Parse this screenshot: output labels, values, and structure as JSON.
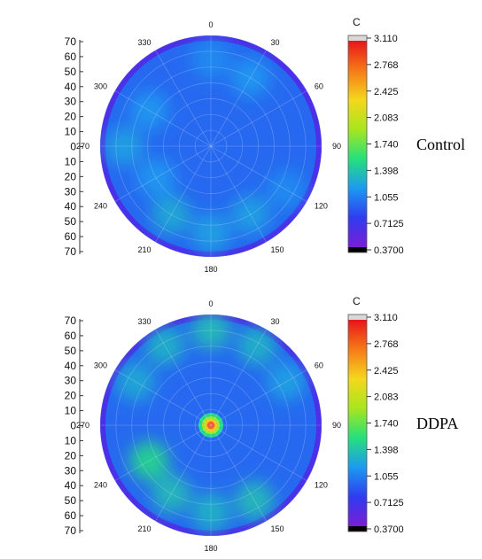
{
  "chart_data": [
    {
      "type": "heatmap",
      "subtype": "polar",
      "group_label": "Control",
      "colorbar_title": "C",
      "colorbar_ticks": [
        "3.110",
        "2.768",
        "2.425",
        "2.083",
        "1.740",
        "1.398",
        "1.055",
        "0.7125",
        "0.3700"
      ],
      "color_range": [
        0.37,
        3.11
      ],
      "colors": [
        "#000000",
        "#7a1dd6",
        "#2f3cf0",
        "#1c9af0",
        "#26e07c",
        "#a8e61e",
        "#f5d71c",
        "#f57a18",
        "#e8141a",
        "#d8d8d8"
      ],
      "radial_ticks": [
        "70",
        "60",
        "50",
        "40",
        "30",
        "20",
        "10",
        "0",
        "10",
        "20",
        "30",
        "40",
        "50",
        "60",
        "70"
      ],
      "radial_range": [
        0,
        70
      ],
      "angular_ticks": [
        {
          "angle": 0,
          "label": "0"
        },
        {
          "angle": 30,
          "label": "30"
        },
        {
          "angle": 60,
          "label": "60"
        },
        {
          "angle": 90,
          "label": "90"
        },
        {
          "angle": 120,
          "label": "120"
        },
        {
          "angle": 150,
          "label": "150"
        },
        {
          "angle": 180,
          "label": "180"
        },
        {
          "angle": 210,
          "label": "210"
        },
        {
          "angle": 240,
          "label": "240"
        },
        {
          "angle": 270,
          "label": "270"
        },
        {
          "angle": 300,
          "label": "300"
        },
        {
          "angle": 330,
          "label": "330"
        }
      ],
      "background_value": 0.95,
      "features": [
        {
          "angle": 270,
          "radius": 55,
          "value": 1.2
        },
        {
          "angle": 300,
          "radius": 45,
          "value": 1.15
        },
        {
          "angle": 30,
          "radius": 50,
          "value": 1.15
        },
        {
          "angle": 0,
          "radius": 55,
          "value": 1.1
        },
        {
          "angle": 210,
          "radius": 50,
          "value": 1.25
        },
        {
          "angle": 180,
          "radius": 55,
          "value": 1.2
        },
        {
          "angle": 150,
          "radius": 50,
          "value": 1.2
        },
        {
          "angle": 240,
          "radius": 40,
          "value": 1.15
        },
        {
          "angle": 120,
          "radius": 55,
          "value": 1.1
        }
      ]
    },
    {
      "type": "heatmap",
      "subtype": "polar",
      "group_label": "DDPA",
      "colorbar_title": "C",
      "colorbar_ticks": [
        "3.110",
        "2.768",
        "2.425",
        "2.083",
        "1.740",
        "1.398",
        "1.055",
        "0.7125",
        "0.3700"
      ],
      "color_range": [
        0.37,
        3.11
      ],
      "colors": [
        "#000000",
        "#7a1dd6",
        "#2f3cf0",
        "#1c9af0",
        "#26e07c",
        "#a8e61e",
        "#f5d71c",
        "#f57a18",
        "#e8141a",
        "#d8d8d8"
      ],
      "radial_ticks": [
        "70",
        "60",
        "50",
        "40",
        "30",
        "20",
        "10",
        "0",
        "10",
        "20",
        "30",
        "40",
        "50",
        "60",
        "70"
      ],
      "radial_range": [
        0,
        70
      ],
      "angular_ticks": [
        {
          "angle": 0,
          "label": "0"
        },
        {
          "angle": 30,
          "label": "30"
        },
        {
          "angle": 60,
          "label": "60"
        },
        {
          "angle": 90,
          "label": "90"
        },
        {
          "angle": 120,
          "label": "120"
        },
        {
          "angle": 150,
          "label": "150"
        },
        {
          "angle": 180,
          "label": "180"
        },
        {
          "angle": 210,
          "label": "210"
        },
        {
          "angle": 240,
          "label": "240"
        },
        {
          "angle": 270,
          "label": "270"
        },
        {
          "angle": 300,
          "label": "300"
        },
        {
          "angle": 330,
          "label": "330"
        }
      ],
      "background_value": 0.95,
      "features": [
        {
          "angle": 0,
          "radius": 0,
          "value": 3.0
        },
        {
          "angle": 0,
          "radius": 60,
          "value": 1.35
        },
        {
          "angle": 330,
          "radius": 58,
          "value": 1.3
        },
        {
          "angle": 30,
          "radius": 58,
          "value": 1.3
        },
        {
          "angle": 300,
          "radius": 55,
          "value": 1.25
        },
        {
          "angle": 240,
          "radius": 45,
          "value": 1.5
        },
        {
          "angle": 210,
          "radius": 50,
          "value": 1.35
        },
        {
          "angle": 180,
          "radius": 55,
          "value": 1.3
        },
        {
          "angle": 150,
          "radius": 55,
          "value": 1.35
        },
        {
          "angle": 60,
          "radius": 55,
          "value": 1.2
        }
      ]
    }
  ]
}
